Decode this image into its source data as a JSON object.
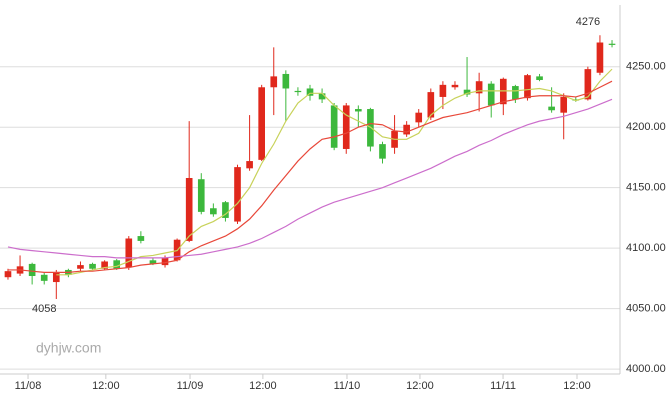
{
  "chart_data": {
    "type": "candlestick",
    "x": [
      0,
      1,
      2,
      3,
      4,
      5,
      6,
      7,
      8,
      9,
      10,
      11,
      12,
      13,
      14,
      15,
      16,
      17,
      18,
      19,
      20,
      21,
      22,
      23,
      24,
      25,
      26,
      27,
      28,
      29,
      30,
      31,
      32,
      33,
      34,
      35,
      36,
      37,
      38,
      39,
      40,
      41,
      42,
      43,
      44,
      45,
      46,
      47,
      48,
      49,
      50
    ],
    "open": [
      4076,
      4079,
      4087,
      4078,
      4072,
      4082,
      4083,
      4087,
      4083,
      4090,
      4084,
      4110,
      4090,
      4086,
      4090,
      4106,
      4157,
      4133,
      4138,
      4122,
      4166,
      4173,
      4233,
      4244,
      4230,
      4232,
      4228,
      4218,
      4182,
      4215,
      4215,
      4186,
      4183,
      4194,
      4204,
      4208,
      4225,
      4233,
      4231,
      4228,
      4236,
      4219,
      4234,
      4224,
      4242,
      4217,
      4212,
      4223,
      4223,
      4245,
      4269
    ],
    "high": [
      4083,
      4094,
      4088,
      4080,
      4082,
      4083,
      4089,
      4088,
      4090,
      4091,
      4110,
      4114,
      4092,
      4094,
      4108,
      4205,
      4162,
      4137,
      4139,
      4169,
      4210,
      4235,
      4266,
      4247,
      4233,
      4235,
      4232,
      4220,
      4220,
      4218,
      4216,
      4188,
      4210,
      4205,
      4215,
      4232,
      4238,
      4238,
      4258,
      4245,
      4238,
      4241,
      4235,
      4244,
      4244,
      4233,
      4228,
      4225,
      4250,
      4276,
      4272
    ],
    "low": [
      4074,
      4077,
      4070,
      4070,
      4058,
      4076,
      4081,
      4082,
      4082,
      4082,
      4082,
      4104,
      4086,
      4084,
      4089,
      4105,
      4128,
      4126,
      4122,
      4120,
      4164,
      4172,
      4210,
      4205,
      4226,
      4222,
      4220,
      4181,
      4178,
      4200,
      4180,
      4170,
      4178,
      4192,
      4200,
      4206,
      4215,
      4231,
      4225,
      4213,
      4208,
      4210,
      4220,
      4222,
      4238,
      4212,
      4190,
      4221,
      4222,
      4243,
      4266
    ],
    "close": [
      4081,
      4085,
      4077,
      4073,
      4080,
      4078,
      4086,
      4083,
      4089,
      4083,
      4108,
      4106,
      4087,
      4092,
      4107,
      4158,
      4130,
      4128,
      4125,
      4167,
      4172,
      4233,
      4242,
      4232,
      4229,
      4226,
      4223,
      4183,
      4218,
      4213,
      4184,
      4174,
      4197,
      4202,
      4212,
      4229,
      4235,
      4235,
      4227,
      4238,
      4218,
      4240,
      4223,
      4243,
      4239,
      4214,
      4225,
      4222,
      4248,
      4270,
      4268
    ],
    "up_color": "#e0281c",
    "down_color": "#3cb83c",
    "series": [
      {
        "color": "#c8d25a",
        "values": [
          null,
          null,
          null,
          null,
          4078,
          4078,
          4080,
          4082,
          4084,
          4085,
          4089,
          4093,
          4094,
          4096,
          4098,
          4110,
          4118,
          4122,
          4128,
          4137,
          4150,
          4170,
          4186,
          4205,
          4220,
          4228,
          4228,
          4218,
          4210,
          4205,
          4200,
          4192,
          4190,
          4190,
          4195,
          4210,
          4218,
          4224,
          4228,
          4230,
          4230,
          4230,
          4230,
          4231,
          4232,
          4230,
          4226,
          4222,
          4225,
          4238,
          4248
        ]
      },
      {
        "color": "#e8483a",
        "values": [
          4082,
          4082,
          4081,
          4080,
          4080,
          4080,
          4081,
          4081,
          4082,
          4083,
          4084,
          4086,
          4087,
          4088,
          4090,
          4097,
          4102,
          4106,
          4110,
          4116,
          4124,
          4135,
          4148,
          4160,
          4172,
          4182,
          4190,
          4192,
          4195,
          4200,
          4203,
          4202,
          4197,
          4196,
          4200,
          4204,
          4208,
          4210,
          4212,
          4215,
          4218,
          4221,
          4223,
          4225,
          4226,
          4226,
          4226,
          4225,
          4228,
          4233,
          4238
        ]
      },
      {
        "color": "#cc6ecc",
        "values": [
          4101,
          4099,
          4098,
          4097,
          4096,
          4095,
          4094,
          4093,
          4093,
          4092,
          4092,
          4092,
          4092,
          4092,
          4093,
          4094,
          4095,
          4097,
          4099,
          4101,
          4104,
          4108,
          4113,
          4118,
          4124,
          4129,
          4134,
          4138,
          4141,
          4144,
          4147,
          4150,
          4154,
          4158,
          4162,
          4166,
          4171,
          4176,
          4180,
          4185,
          4189,
          4194,
          4198,
          4202,
          4205,
          4207,
          4209,
          4212,
          4215,
          4219,
          4223
        ]
      }
    ],
    "xlim": [
      -0.66,
      50.66
    ],
    "xticks": [
      {
        "value": 1.66,
        "label": "11/08"
      },
      {
        "value": 8.1,
        "label": "12:00"
      },
      {
        "value": 15.07,
        "label": "11/09"
      },
      {
        "value": 21.1,
        "label": "12:00"
      },
      {
        "value": 28.06,
        "label": "11/10"
      },
      {
        "value": 34.1,
        "label": "12:00"
      },
      {
        "value": 40.98,
        "label": "11/11"
      },
      {
        "value": 47.1,
        "label": "12:00"
      }
    ],
    "ylim": [
      3996,
      4301
    ],
    "yticks": [
      {
        "value": 4000,
        "label": "4000.00"
      },
      {
        "value": 4050,
        "label": "4050.00"
      },
      {
        "value": 4100,
        "label": "4100.00"
      },
      {
        "value": 4150,
        "label": "4150.00"
      },
      {
        "value": 4200,
        "label": "4200.00"
      },
      {
        "value": 4250,
        "label": "4250.00"
      }
    ],
    "grid": true,
    "annotations": [
      "4276",
      "4058"
    ],
    "watermark": "dyhjw.com"
  }
}
